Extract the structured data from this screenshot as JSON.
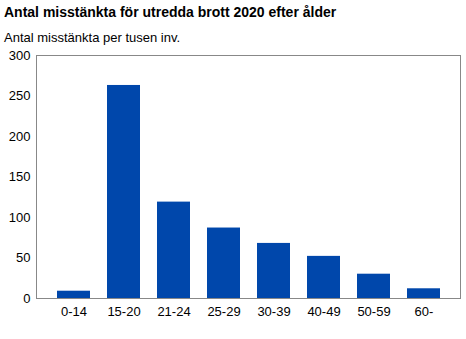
{
  "chart_data": {
    "type": "bar",
    "title": "Antal misstänkta för utredda brott 2020 efter ålder",
    "subtitle": "Antal misstänkta per tusen inv.",
    "categories": [
      "0-14",
      "15-20",
      "21-24",
      "25-29",
      "30-39",
      "40-49",
      "50-59",
      "60-"
    ],
    "values": [
      9,
      263,
      119,
      87,
      68,
      52,
      30,
      12
    ],
    "color": "#0047ab",
    "ylim": [
      0,
      300
    ],
    "yticks": [
      0,
      50,
      100,
      150,
      200,
      250,
      300
    ],
    "grid": false
  }
}
